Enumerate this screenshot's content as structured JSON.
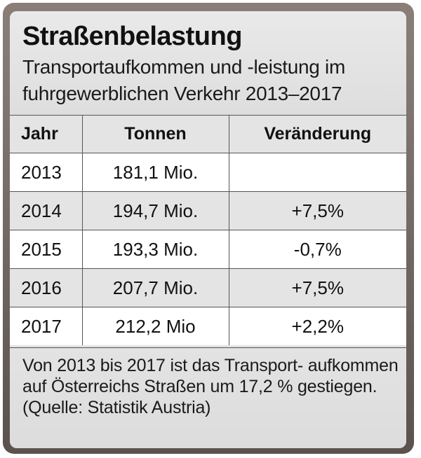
{
  "chart_data": {
    "type": "table",
    "title": "Straßenbelastung",
    "subtitle": "Transportaufkommen und -leistung im fuhrgewerblichen Verkehr 2013–2017",
    "columns": [
      "Jahr",
      "Tonnen",
      "Veränderung"
    ],
    "rows": [
      {
        "year": "2013",
        "tonnen": "181,1 Mio.",
        "change": ""
      },
      {
        "year": "2014",
        "tonnen": "194,7 Mio.",
        "change": "+7,5%"
      },
      {
        "year": "2015",
        "tonnen": "193,3 Mio.",
        "change": "-0,7%"
      },
      {
        "year": "2016",
        "tonnen": "207,7 Mio.",
        "change": "+7,5%"
      },
      {
        "year": "2017",
        "tonnen": "212,2 Mio",
        "change": "+2,2%"
      }
    ],
    "note": "Von 2013 bis 2017 ist das Transport- aufkommen auf Österreichs Straßen um 17,2 % gestiegen. (Quelle: Statistik Austria)"
  },
  "colors": {
    "frame": "#6f6560",
    "panel": "#e4e4e4",
    "row_white": "#ffffff",
    "row_grey": "#e4e4e4",
    "border": "#555555"
  }
}
